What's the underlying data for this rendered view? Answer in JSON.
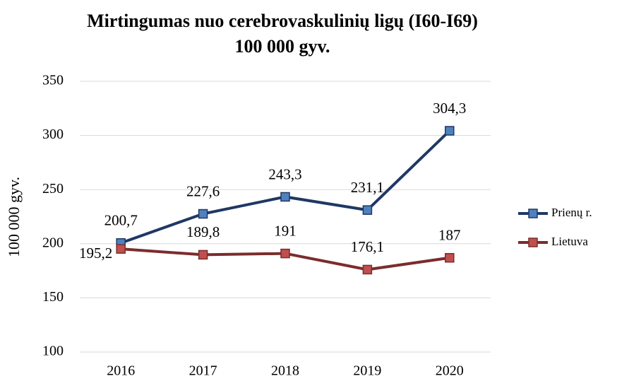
{
  "chart_data": {
    "type": "line",
    "title": "Mirtingumas nuo cerebrovaskulinių ligų (I60-I69)",
    "subtitle": "100 000 gyv.",
    "y_label": "100 000 gyv.",
    "categories": [
      "2016",
      "2017",
      "2018",
      "2019",
      "2020"
    ],
    "series": [
      {
        "name": "Prienų r.",
        "color": "#1f3864",
        "marker_color": "#4f81bd",
        "values": [
          200.7,
          227.6,
          243.3,
          231.1,
          304.3
        ],
        "value_labels": [
          "200,7",
          "227,6",
          "243,3",
          "231,1",
          "304,3"
        ]
      },
      {
        "name": "Lietuva",
        "color": "#7b2c2c",
        "marker_color": "#c0504d",
        "values": [
          195.2,
          189.8,
          191,
          176.1,
          187
        ],
        "value_labels": [
          "195,2",
          "189,8",
          "191",
          "176,1",
          "187"
        ]
      }
    ],
    "ylim": [
      100,
      350
    ],
    "yticks": [
      100,
      150,
      200,
      250,
      300,
      350
    ],
    "grid": true,
    "legend": "right"
  }
}
